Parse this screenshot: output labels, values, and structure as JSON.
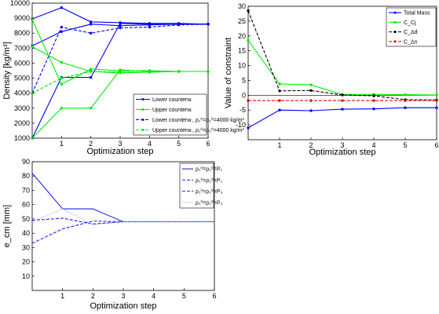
{
  "chart_data": [
    {
      "type": "line",
      "xlabel": "Optimization step",
      "ylabel": "Density [kg/m³]",
      "xlim": [
        0,
        6
      ],
      "ylim": [
        1000,
        10000
      ],
      "xticks": [
        1,
        2,
        3,
        4,
        5,
        6
      ],
      "yticks": [
        1000,
        2000,
        3000,
        4000,
        5000,
        6000,
        7000,
        8000,
        9000,
        10000
      ],
      "legend_position": "bottom-right",
      "series": [
        {
          "name": "Lower counterw.",
          "color": "#0000ff",
          "style": "solid",
          "marker": "dot",
          "x": [
            0,
            1,
            2,
            3,
            4,
            5,
            6
          ],
          "y": [
            1000,
            5050,
            5050,
            8650,
            8600,
            8600,
            8600
          ]
        },
        {
          "name": "Lower counterw.",
          "color": "#0000ff",
          "style": "solid",
          "marker": "dot",
          "x": [
            0,
            1,
            2,
            3,
            4,
            5,
            6
          ],
          "y": [
            8950,
            9700,
            8750,
            8700,
            8650,
            8650,
            8600
          ]
        },
        {
          "name": "Lower counterw.",
          "color": "#0000ff",
          "style": "solid",
          "marker": "dot",
          "x": [
            0,
            1,
            2,
            3,
            4,
            5,
            6
          ],
          "y": [
            7150,
            8100,
            8600,
            8500,
            8550,
            8600,
            8600
          ]
        },
        {
          "name": "Upper counterw.",
          "color": "#00ee00",
          "style": "solid",
          "marker": "dot",
          "x": [
            0,
            1,
            2,
            3,
            4,
            5,
            6
          ],
          "y": [
            1000,
            3000,
            3000,
            5550,
            5450,
            5450,
            5450
          ]
        },
        {
          "name": "Upper counterw.",
          "color": "#00ee00",
          "style": "solid",
          "marker": "dot",
          "x": [
            0,
            1,
            2,
            3,
            4,
            5,
            6
          ],
          "y": [
            8900,
            4600,
            5600,
            5500,
            5500,
            5450,
            5450
          ]
        },
        {
          "name": "Upper counterw.",
          "color": "#00ee00",
          "style": "solid",
          "marker": "dot",
          "x": [
            0,
            1,
            2,
            3,
            4,
            5,
            6
          ],
          "y": [
            7100,
            6050,
            5450,
            5350,
            5400,
            5450,
            5450
          ]
        },
        {
          "name": "Lower counterw., ρ₁⁰=ρ₂⁰=4000 kg/m³",
          "color": "#0000ff",
          "style": "dashed",
          "marker": "dot",
          "x": [
            0,
            1,
            2,
            3,
            4,
            5,
            6
          ],
          "y": [
            4000,
            8400,
            8000,
            8350,
            8400,
            8550,
            8600
          ]
        },
        {
          "name": "Upper counterw., ρ₁⁰=ρ₂⁰=4000 kg/m³",
          "color": "#00ee00",
          "style": "dashed",
          "marker": "dot",
          "x": [
            0,
            1,
            2,
            3,
            4,
            5,
            6
          ],
          "y": [
            4000,
            5000,
            5450,
            5400,
            5400,
            5450,
            5450
          ]
        }
      ],
      "legend": [
        {
          "text": "Lower counterw.",
          "color": "#0000ff",
          "style": "solid"
        },
        {
          "text": "Upper counterw.",
          "color": "#00ee00",
          "style": "solid"
        },
        {
          "text": "Lower counterw., ρ₁⁰=ρ₂⁰=4000 kg/m³",
          "color": "#0000ff",
          "style": "dashed"
        },
        {
          "text": "Upper counterw., ρ₁⁰=ρ₂⁰=4000 kg/m³",
          "color": "#00ee00",
          "style": "dashed"
        }
      ]
    },
    {
      "type": "line",
      "xlabel": "Optimization step",
      "ylabel": "Value of constraint",
      "xlim": [
        0,
        6
      ],
      "ylim": [
        -15,
        30
      ],
      "xticks": [
        1,
        2,
        3,
        4,
        5,
        6
      ],
      "yticks": [
        -10,
        -5,
        0,
        5,
        10,
        15,
        20,
        25,
        30
      ],
      "reference_line": 0,
      "legend_position": "top-right",
      "series": [
        {
          "name": "Total Mass",
          "color": "#0000ff",
          "style": "solid",
          "marker": "dot",
          "x": [
            0,
            1,
            2,
            3,
            4,
            5,
            6
          ],
          "y": [
            -11,
            -5,
            -5.2,
            -4.7,
            -4.6,
            -4.2,
            -4.2
          ]
        },
        {
          "name": "C_Cj",
          "color": "#00ee00",
          "style": "solid",
          "marker": "dot",
          "x": [
            0,
            1,
            2,
            3,
            4,
            5,
            6
          ],
          "y": [
            18.5,
            3.8,
            3.5,
            0.2,
            0.3,
            0.2,
            0.1
          ]
        },
        {
          "name": "C_Δd",
          "color": "#000000",
          "style": "dashed",
          "marker": "dot",
          "x": [
            0,
            1,
            2,
            3,
            4,
            5,
            6
          ],
          "y": [
            28.5,
            1.5,
            1.6,
            0.1,
            -0.2,
            -1.5,
            -1.6
          ]
        },
        {
          "name": "C_Δn",
          "color": "#ee0000",
          "style": "dashed",
          "marker": "dot",
          "x": [
            0,
            1,
            2,
            3,
            4,
            5,
            6
          ],
          "y": [
            -1.8,
            -1.8,
            -1.8,
            -1.8,
            -1.8,
            -1.8,
            -1.8
          ]
        }
      ],
      "legend": [
        {
          "text": "Total Mass",
          "color": "#0000ff",
          "style": "solid"
        },
        {
          "text": "C_Cj",
          "color": "#00ee00",
          "style": "solid"
        },
        {
          "text": "C_Δd",
          "color": "#000000",
          "style": "dashed"
        },
        {
          "text": "C_Δn",
          "color": "#ee0000",
          "style": "dashed"
        }
      ]
    },
    {
      "type": "line",
      "xlabel": "Optimization step",
      "ylabel": "e_cm [mm]",
      "xlim": [
        0,
        6
      ],
      "ylim": [
        0,
        90
      ],
      "xticks": [
        1,
        2,
        3,
        4,
        5,
        6
      ],
      "yticks": [
        10,
        20,
        30,
        40,
        50,
        60,
        70,
        80,
        90
      ],
      "legend_position": "top-right",
      "series": [
        {
          "name": "ρ₁⁰=ρ₂⁰=P₁",
          "color": "#2222ee",
          "style": "solid",
          "x": [
            0,
            1,
            2,
            3,
            4,
            5,
            6
          ],
          "y": [
            82,
            57,
            57,
            48,
            48,
            48,
            48
          ]
        },
        {
          "name": "ρ₁⁰=ρ₂⁰=P₂",
          "color": "#2222ee",
          "style": "dashed",
          "x": [
            0,
            1,
            2,
            3,
            4,
            5,
            6
          ],
          "y": [
            49,
            50.5,
            46.5,
            48,
            48,
            48,
            48
          ]
        },
        {
          "name": "ρ₁⁰=ρ₂⁰=P₃",
          "color": "#2222ee",
          "style": "dashed",
          "x": [
            0,
            1,
            2,
            3,
            4,
            5,
            6
          ],
          "y": [
            33,
            43,
            48.5,
            48,
            48,
            48,
            48
          ]
        },
        {
          "name": "ρ₁⁰=ρ₂⁰=P₄",
          "color": "#9999ee",
          "style": "dotted",
          "x": [
            0,
            1,
            2,
            3,
            4,
            5,
            6
          ],
          "y": [
            48,
            57,
            46,
            48,
            48,
            48,
            48
          ]
        }
      ],
      "legend": [
        {
          "text": "ρ₁⁰=ρ₂⁰=P₁",
          "color": "#2222ee",
          "style": "solid"
        },
        {
          "text": "ρ₁⁰=ρ₂⁰=P₂",
          "color": "#2222ee",
          "style": "dashed"
        },
        {
          "text": "ρ₁⁰=ρ₂⁰=P₃",
          "color": "#2222ee",
          "style": "dashed"
        },
        {
          "text": "ρ₁⁰=ρ₂⁰=P₄",
          "color": "#9999ee",
          "style": "dotted"
        }
      ]
    }
  ]
}
